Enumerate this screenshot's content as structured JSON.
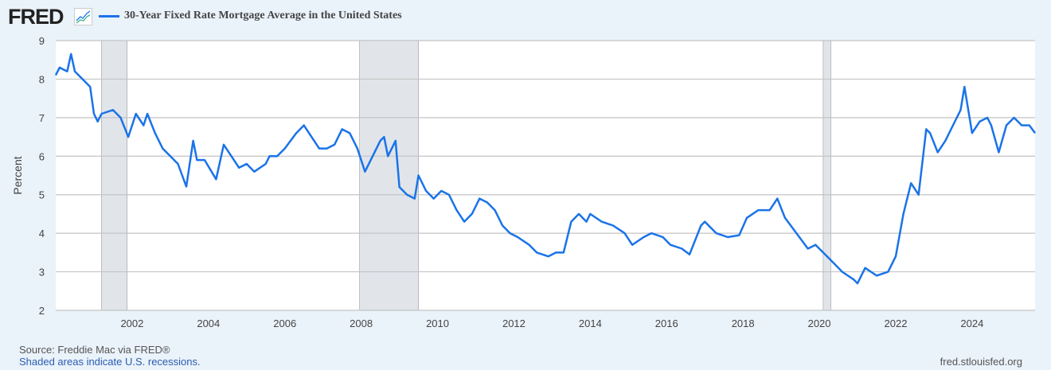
{
  "header": {
    "logo": "FRED",
    "logo_icon": "chart-line-icon"
  },
  "chart_data": {
    "type": "line",
    "title": "30-Year Fixed Rate Mortgage Average in the United States",
    "xlabel": "",
    "ylabel": "Percent",
    "ylim": [
      2,
      9
    ],
    "xlim": [
      2000.0,
      2025.65
    ],
    "yticks": [
      "2",
      "3",
      "4",
      "5",
      "6",
      "7",
      "8",
      "9"
    ],
    "xticks": [
      "2002",
      "2004",
      "2006",
      "2008",
      "2010",
      "2012",
      "2014",
      "2016",
      "2018",
      "2020",
      "2022",
      "2024"
    ],
    "grid": true,
    "legend": "top-left",
    "color": "#1a73e8",
    "recessions": [
      [
        2001.2,
        2001.87
      ],
      [
        2007.96,
        2009.5
      ],
      [
        2020.1,
        2020.3
      ]
    ],
    "series": [
      {
        "name": "30-Year Fixed Rate Mortgage Average in the United States",
        "x": [
          2000.0,
          2000.1,
          2000.3,
          2000.4,
          2000.5,
          2000.7,
          2000.9,
          2001.0,
          2001.1,
          2001.2,
          2001.5,
          2001.7,
          2001.9,
          2002.1,
          2002.3,
          2002.4,
          2002.6,
          2002.8,
          2003.0,
          2003.2,
          2003.42,
          2003.6,
          2003.7,
          2003.9,
          2004.2,
          2004.4,
          2004.6,
          2004.8,
          2005.0,
          2005.2,
          2005.5,
          2005.6,
          2005.8,
          2006.0,
          2006.3,
          2006.5,
          2006.7,
          2006.9,
          2007.1,
          2007.3,
          2007.5,
          2007.7,
          2007.9,
          2008.1,
          2008.3,
          2008.5,
          2008.6,
          2008.7,
          2008.9,
          2009.0,
          2009.2,
          2009.4,
          2009.5,
          2009.7,
          2009.9,
          2010.1,
          2010.3,
          2010.5,
          2010.7,
          2010.9,
          2011.1,
          2011.3,
          2011.5,
          2011.7,
          2011.9,
          2012.1,
          2012.4,
          2012.6,
          2012.9,
          2013.1,
          2013.3,
          2013.5,
          2013.7,
          2013.9,
          2014.0,
          2014.3,
          2014.6,
          2014.9,
          2015.1,
          2015.4,
          2015.6,
          2015.9,
          2016.1,
          2016.4,
          2016.6,
          2016.9,
          2017.0,
          2017.3,
          2017.6,
          2017.9,
          2018.1,
          2018.4,
          2018.7,
          2018.9,
          2019.1,
          2019.4,
          2019.7,
          2019.9,
          2020.1,
          2020.3,
          2020.6,
          2020.9,
          2021.0,
          2021.2,
          2021.5,
          2021.8,
          2022.0,
          2022.2,
          2022.4,
          2022.6,
          2022.8,
          2022.9,
          2023.1,
          2023.3,
          2023.5,
          2023.7,
          2023.8,
          2024.0,
          2024.2,
          2024.4,
          2024.5,
          2024.7,
          2024.9,
          2025.1,
          2025.3,
          2025.5,
          2025.65
        ],
        "y": [
          8.1,
          8.3,
          8.2,
          8.65,
          8.2,
          8.0,
          7.8,
          7.1,
          6.9,
          7.1,
          7.2,
          7.0,
          6.5,
          7.1,
          6.8,
          7.1,
          6.6,
          6.2,
          6.0,
          5.8,
          5.21,
          6.4,
          5.9,
          5.9,
          5.4,
          6.3,
          6.0,
          5.7,
          5.8,
          5.6,
          5.8,
          6.0,
          6.0,
          6.2,
          6.6,
          6.8,
          6.5,
          6.2,
          6.2,
          6.3,
          6.7,
          6.6,
          6.2,
          5.6,
          6.0,
          6.4,
          6.5,
          6.0,
          6.4,
          5.2,
          5.0,
          4.9,
          5.5,
          5.1,
          4.9,
          5.1,
          5.0,
          4.6,
          4.3,
          4.5,
          4.9,
          4.8,
          4.6,
          4.2,
          4.0,
          3.9,
          3.7,
          3.5,
          3.4,
          3.5,
          3.5,
          4.3,
          4.5,
          4.3,
          4.5,
          4.3,
          4.2,
          4.0,
          3.7,
          3.9,
          4.0,
          3.9,
          3.7,
          3.6,
          3.45,
          4.2,
          4.3,
          4.0,
          3.9,
          3.95,
          4.4,
          4.6,
          4.6,
          4.9,
          4.4,
          4.0,
          3.6,
          3.7,
          3.5,
          3.3,
          3.0,
          2.8,
          2.7,
          3.1,
          2.9,
          3.0,
          3.4,
          4.5,
          5.3,
          5.0,
          6.7,
          6.6,
          6.1,
          6.4,
          6.8,
          7.2,
          7.8,
          6.6,
          6.9,
          7.0,
          6.8,
          6.1,
          6.8,
          7.0,
          6.8,
          6.8,
          6.6
        ]
      }
    ]
  },
  "footer": {
    "source": "Source: Freddie Mac via FRED®",
    "recession_note": "Shaded areas indicate U.S. recessions.",
    "site": "fred.stlouisfed.org"
  }
}
